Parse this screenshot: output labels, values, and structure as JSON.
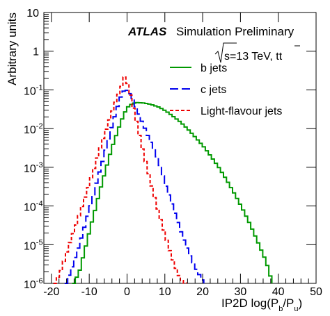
{
  "chart_data": {
    "type": "line",
    "title": "",
    "experiment": "ATLAS",
    "subtitle": "Simulation Preliminary",
    "energy_label": "s=13 TeV, tt",
    "xlabel": "IP2D log(P_b/P_u)",
    "xlabel_text": "IP2D log(P",
    "xlabel_sub_b": "b",
    "xlabel_mid": "/P",
    "xlabel_sub_u": "u",
    "xlabel_close": ")",
    "ylabel": "Arbitrary units",
    "xlim": [
      -22,
      50
    ],
    "ylim": [
      1e-06,
      10
    ],
    "yscale": "log",
    "x_ticks": [
      -20,
      -10,
      0,
      10,
      20,
      30,
      40,
      50
    ],
    "x_tick_labels": [
      "-20",
      "-10",
      "0",
      "10",
      "20",
      "30",
      "40",
      "50"
    ],
    "y_ticks": [
      {
        "base": "10",
        "exp": "-6",
        "value": 1e-06
      },
      {
        "base": "10",
        "exp": "-5",
        "value": 1e-05
      },
      {
        "base": "10",
        "exp": "-4",
        "value": 0.0001
      },
      {
        "base": "10",
        "exp": "-3",
        "value": 0.001
      },
      {
        "base": "10",
        "exp": "-2",
        "value": 0.01
      },
      {
        "base": "10",
        "exp": "-1",
        "value": 0.1
      },
      {
        "base": "1",
        "exp": "",
        "value": 1
      },
      {
        "base": "10",
        "exp": "",
        "value": 10
      }
    ],
    "legend_position": "top-right",
    "grid": false,
    "series": [
      {
        "name": "b jets",
        "color": "#009900",
        "dash": "solid",
        "points": [
          [
            -14.5,
            1e-06
          ],
          [
            -13,
            2e-06
          ],
          [
            -12,
            5e-06
          ],
          [
            -11,
            1.2e-05
          ],
          [
            -10,
            3e-05
          ],
          [
            -9,
            7e-05
          ],
          [
            -8,
            0.00017
          ],
          [
            -7,
            0.0004
          ],
          [
            -6,
            0.0009
          ],
          [
            -5,
            0.002
          ],
          [
            -4,
            0.0042
          ],
          [
            -3,
            0.008
          ],
          [
            -2,
            0.015
          ],
          [
            -1,
            0.026
          ],
          [
            0,
            0.038
          ],
          [
            1,
            0.044
          ],
          [
            2,
            0.047
          ],
          [
            4,
            0.046
          ],
          [
            6,
            0.042
          ],
          [
            8,
            0.036
          ],
          [
            10,
            0.028
          ],
          [
            12,
            0.02
          ],
          [
            14,
            0.014
          ],
          [
            16,
            0.009
          ],
          [
            18,
            0.0055
          ],
          [
            20,
            0.0033
          ],
          [
            22,
            0.0018
          ],
          [
            24,
            0.00095
          ],
          [
            26,
            0.00046
          ],
          [
            28,
            0.00021
          ],
          [
            30,
            9e-05
          ],
          [
            32,
            3.6e-05
          ],
          [
            34,
            1.3e-05
          ],
          [
            36,
            4.5e-06
          ],
          [
            37,
            2.4e-06
          ],
          [
            38,
            1e-06
          ]
        ]
      },
      {
        "name": "c jets",
        "color": "#0000ee",
        "dash": "long",
        "points": [
          [
            -16.5,
            1e-06
          ],
          [
            -15,
            2.5e-06
          ],
          [
            -14,
            5e-06
          ],
          [
            -13,
            1e-05
          ],
          [
            -12,
            2.2e-05
          ],
          [
            -11,
            5e-05
          ],
          [
            -10,
            0.00011
          ],
          [
            -9,
            0.00025
          ],
          [
            -8,
            0.0006
          ],
          [
            -7,
            0.0013
          ],
          [
            -6,
            0.003
          ],
          [
            -5,
            0.007
          ],
          [
            -4,
            0.016
          ],
          [
            -3,
            0.035
          ],
          [
            -2,
            0.07
          ],
          [
            -1,
            0.105
          ],
          [
            0,
            0.09
          ],
          [
            1,
            0.06
          ],
          [
            2,
            0.035
          ],
          [
            3,
            0.02
          ],
          [
            4,
            0.012
          ],
          [
            5,
            0.007
          ],
          [
            6,
            0.0042
          ],
          [
            7,
            0.0025
          ],
          [
            8,
            0.0014
          ],
          [
            9,
            0.00065
          ],
          [
            10,
            0.0003
          ],
          [
            11,
            0.00016
          ],
          [
            12,
            8e-05
          ],
          [
            13,
            4e-05
          ],
          [
            14,
            2e-05
          ],
          [
            15,
            1.1e-05
          ],
          [
            16,
            6e-06
          ],
          [
            17,
            3.6e-06
          ],
          [
            18,
            2.2e-06
          ],
          [
            19,
            1.5e-06
          ],
          [
            20,
            1e-06
          ]
        ]
      },
      {
        "name": "Light-flavour jets",
        "color": "#ee0000",
        "dash": "short",
        "points": [
          [
            -19.5,
            1e-06
          ],
          [
            -18,
            2e-06
          ],
          [
            -17,
            4e-06
          ],
          [
            -16,
            8e-06
          ],
          [
            -15,
            1.6e-05
          ],
          [
            -14,
            3e-05
          ],
          [
            -13,
            6e-05
          ],
          [
            -12,
            0.00012
          ],
          [
            -11,
            0.00024
          ],
          [
            -10,
            0.0005
          ],
          [
            -9,
            0.001
          ],
          [
            -8,
            0.0022
          ],
          [
            -7,
            0.0045
          ],
          [
            -6,
            0.009
          ],
          [
            -5,
            0.018
          ],
          [
            -4,
            0.035
          ],
          [
            -3,
            0.065
          ],
          [
            -2,
            0.115
          ],
          [
            -1,
            0.23
          ],
          [
            0,
            0.12
          ],
          [
            1,
            0.045
          ],
          [
            2,
            0.017
          ],
          [
            3,
            0.006
          ],
          [
            4,
            0.0022
          ],
          [
            5,
            0.0009
          ],
          [
            6,
            0.00036
          ],
          [
            7,
            0.00015
          ],
          [
            8,
            6.5e-05
          ],
          [
            9,
            3e-05
          ],
          [
            10,
            1.4e-05
          ],
          [
            11,
            6.5e-06
          ],
          [
            12,
            3.3e-06
          ],
          [
            13,
            1.8e-06
          ],
          [
            14,
            1.2e-06
          ],
          [
            15,
            1e-06
          ]
        ]
      }
    ]
  }
}
